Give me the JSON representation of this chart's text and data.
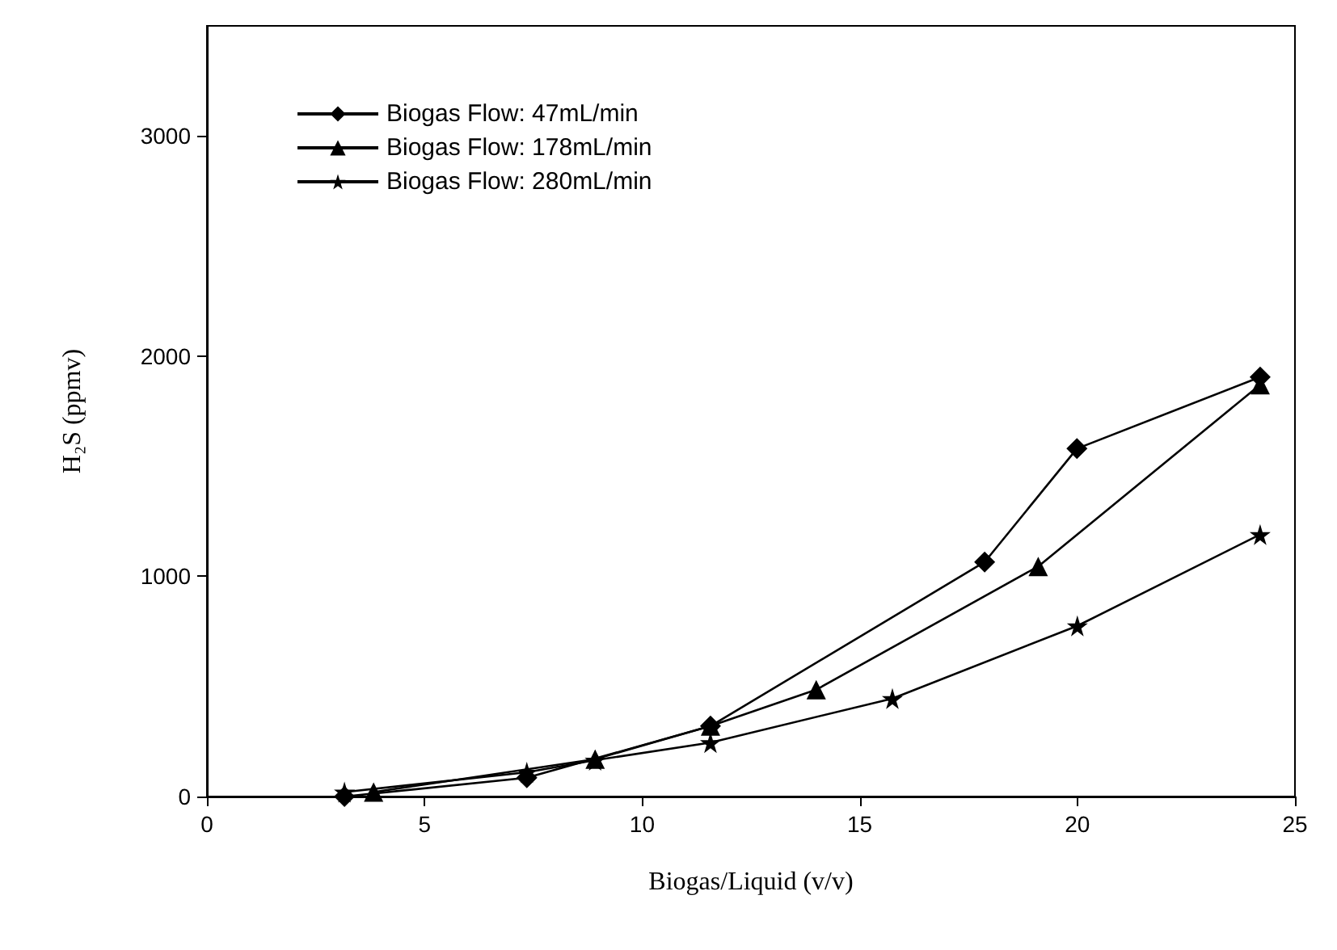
{
  "chart_data": {
    "type": "line",
    "xlabel": "Biogas/Liquid (v/v)",
    "ylabel": "H₂S (ppmv)",
    "xlim": [
      0,
      25
    ],
    "xticks": [
      0,
      5,
      10,
      15,
      20,
      25
    ],
    "ylim": [
      0,
      3500
    ],
    "yticks": [
      0,
      1000,
      2000,
      3000
    ],
    "grid": false,
    "legend": "top left",
    "line_style": "solid",
    "series": [
      {
        "name": "Biogas Flow: 47mL/min",
        "color": "#000000",
        "marker": "diamond",
        "x": [
          3.16,
          7.35,
          11.57,
          17.87,
          19.99,
          24.2
        ],
        "values": [
          0,
          85,
          320,
          1065,
          1580,
          1905
        ]
      },
      {
        "name": "Biogas Flow: 178mL/min",
        "color": "#000000",
        "marker": "triangle",
        "x": [
          3.83,
          8.92,
          11.57,
          14.0,
          19.1,
          24.2
        ],
        "values": [
          20,
          170,
          320,
          485,
          1045,
          1870
        ]
      },
      {
        "name": "Biogas Flow: 280mL/min",
        "color": "#000000",
        "marker": "star",
        "x": [
          3.16,
          7.35,
          8.92,
          11.57,
          15.75,
          20.0,
          24.2
        ],
        "values": [
          20,
          110,
          165,
          245,
          445,
          775,
          1190
        ]
      }
    ]
  }
}
